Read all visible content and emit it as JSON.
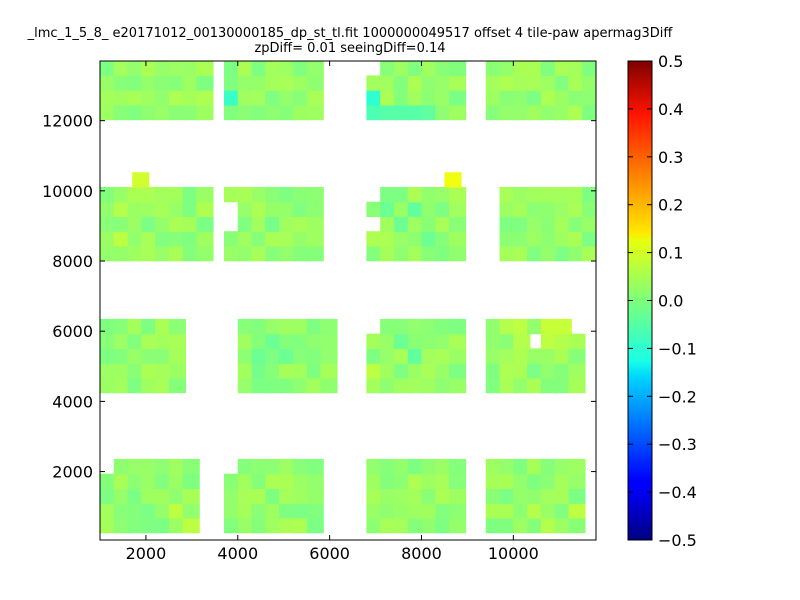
{
  "chart_data": {
    "type": "heatmap",
    "title_line1": "_lmc_1_5_8_ e20171012_00130000185_dp_st_tl.fit 1000000049517 offset 4 tile-paw apermag3Diff",
    "title_line2": "zpDiff= 0.01 seeingDiff=0.14",
    "xlabel": "",
    "ylabel": "",
    "xlim": [
      1000,
      11800
    ],
    "ylim": [
      50,
      13700
    ],
    "x_ticks": [
      2000,
      4000,
      6000,
      8000,
      10000
    ],
    "x_tick_labels": [
      "2000",
      "4000",
      "6000",
      "8000",
      "10000"
    ],
    "y_ticks": [
      2000,
      4000,
      6000,
      8000,
      10000,
      12000
    ],
    "y_tick_labels": [
      "2000",
      "4000",
      "6000",
      "8000",
      "10000",
      "12000"
    ],
    "colorbar": {
      "colormap": "jet",
      "vmin": -0.5,
      "vmax": 0.5,
      "ticks": [
        -0.5,
        -0.4,
        -0.3,
        -0.2,
        -0.1,
        0.0,
        0.1,
        0.2,
        0.3,
        0.4,
        0.5
      ],
      "tick_labels": [
        "−0.5",
        "−0.4",
        "−0.3",
        "−0.2",
        "−0.1",
        "0.0",
        "0.1",
        "0.2",
        "0.3",
        "0.4",
        "0.5"
      ]
    },
    "cell_width": 360,
    "cell_height": 420,
    "row_y": [
      260,
      680,
      1100,
      1520,
      1940,
      4250,
      4670,
      5090,
      5510,
      5930,
      8010,
      8430,
      8850,
      9270,
      9690,
      10110,
      12030,
      12450,
      12870,
      13290
    ],
    "default_value": 0.02,
    "detectors": [
      {
        "x0": 1000,
        "x1": 3000,
        "rows": [
          0,
          1,
          2,
          3,
          4
        ]
      },
      {
        "x0": 3700,
        "x1": 5700,
        "rows": [
          0,
          1,
          2,
          3,
          4
        ]
      },
      {
        "x0": 6800,
        "x1": 8700,
        "rows": [
          0,
          1,
          2,
          3,
          4
        ]
      },
      {
        "x0": 9400,
        "x1": 11400,
        "rows": [
          0,
          1,
          2,
          3,
          4
        ]
      },
      {
        "x0": 1000,
        "x1": 2700,
        "rows": [
          5,
          6,
          7,
          8,
          9
        ]
      },
      {
        "x0": 4000,
        "x1": 6000,
        "rows": [
          5,
          6,
          7,
          8,
          9
        ]
      },
      {
        "x0": 6800,
        "x1": 8700,
        "rows": [
          5,
          6,
          7,
          8,
          9
        ]
      },
      {
        "x0": 9400,
        "x1": 11400,
        "rows": [
          5,
          6,
          7,
          8,
          9
        ]
      },
      {
        "x0": 1000,
        "x1": 3300,
        "rows": [
          10,
          11,
          12,
          13,
          14
        ]
      },
      {
        "x0": 3700,
        "x1": 5700,
        "rows": [
          10,
          11,
          12,
          13,
          14
        ]
      },
      {
        "x0": 6800,
        "x1": 8700,
        "rows": [
          10,
          11,
          12,
          13,
          14
        ]
      },
      {
        "x0": 9700,
        "x1": 11800,
        "rows": [
          10,
          11,
          12,
          13,
          14
        ]
      },
      {
        "x0": 1000,
        "x1": 3300,
        "rows": [
          16,
          17,
          18,
          19
        ]
      },
      {
        "x0": 3700,
        "x1": 5700,
        "rows": [
          16,
          17,
          18,
          19
        ]
      },
      {
        "x0": 6800,
        "x1": 8700,
        "rows": [
          16,
          17,
          18,
          19
        ]
      },
      {
        "x0": 9400,
        "x1": 11800,
        "rows": [
          16,
          17,
          18,
          19
        ]
      }
    ],
    "extra_cells": [
      {
        "x": 1700,
        "y": 10110,
        "v": 0.08
      },
      {
        "x": 8500,
        "y": 10110,
        "v": 0.11
      }
    ],
    "missing_cells": [
      {
        "x": 1000,
        "y": 1940
      },
      {
        "x": 3700,
        "y": 1940
      },
      {
        "x": 7500,
        "y": 1940
      },
      {
        "x": 8400,
        "y": 1940
      },
      {
        "x": 3400,
        "y": 5510
      },
      {
        "x": 3700,
        "y": 5510
      },
      {
        "x": 5100,
        "y": 4670
      },
      {
        "x": 6800,
        "y": 5930
      },
      {
        "x": 8400,
        "y": 5510
      },
      {
        "x": 10300,
        "y": 5510
      },
      {
        "x": 11200,
        "y": 5930
      },
      {
        "x": 6800,
        "y": 8850
      },
      {
        "x": 3700,
        "y": 8850
      },
      {
        "x": 3700,
        "y": 9270
      },
      {
        "x": 6800,
        "y": 9690
      },
      {
        "x": 8400,
        "y": 12030
      },
      {
        "x": 3000,
        "y": 12030
      },
      {
        "x": 6800,
        "y": 13290
      },
      {
        "x": 5700,
        "y": 12030
      },
      {
        "x": 3400,
        "y": 12450
      }
    ],
    "cell_values": [
      {
        "x": 3000,
        "y": 680,
        "v": -0.07
      },
      {
        "x": 3000,
        "y": 9270,
        "v": -0.06
      },
      {
        "x": 3000,
        "y": 8850,
        "v": -0.04
      },
      {
        "x": 3000,
        "y": 8430,
        "v": -0.08
      },
      {
        "x": 5700,
        "y": 4250,
        "v": -0.09
      },
      {
        "x": 5400,
        "y": 4250,
        "v": -0.05
      },
      {
        "x": 5100,
        "y": 4250,
        "v": -0.05
      },
      {
        "x": 3700,
        "y": 12450,
        "v": -0.07
      },
      {
        "x": 6800,
        "y": 12450,
        "v": -0.08
      },
      {
        "x": 6800,
        "y": 12030,
        "v": -0.05
      },
      {
        "x": 8700,
        "y": 12870,
        "v": 0.1
      },
      {
        "x": 6800,
        "y": 4670,
        "v": 0.06
      },
      {
        "x": 7100,
        "y": 12030,
        "v": -0.04
      },
      {
        "x": 7400,
        "y": 12030,
        "v": -0.04
      },
      {
        "x": 7700,
        "y": 12030,
        "v": -0.04
      },
      {
        "x": 8000,
        "y": 12030,
        "v": -0.03
      },
      {
        "x": 8700,
        "y": 12450,
        "v": 0.07
      },
      {
        "x": 8700,
        "y": 13290,
        "v": 0.06
      },
      {
        "x": 9700,
        "y": 5930,
        "v": 0.05
      },
      {
        "x": 10000,
        "y": 5930,
        "v": 0.06
      },
      {
        "x": 10000,
        "y": 5510,
        "v": 0.05
      },
      {
        "x": 10600,
        "y": 5510,
        "v": 0.06
      },
      {
        "x": 10600,
        "y": 5930,
        "v": 0.07
      },
      {
        "x": 10900,
        "y": 5930,
        "v": 0.07
      },
      {
        "x": 10900,
        "y": 5510,
        "v": 0.05
      },
      {
        "x": 1300,
        "y": 9270,
        "v": 0.05
      },
      {
        "x": 1300,
        "y": 8430,
        "v": 0.06
      },
      {
        "x": 2500,
        "y": 680,
        "v": 0.06
      },
      {
        "x": 2800,
        "y": 260,
        "v": 0.06
      },
      {
        "x": 10300,
        "y": 680,
        "v": 0.05
      },
      {
        "x": 10600,
        "y": 260,
        "v": 0.05
      },
      {
        "x": 11200,
        "y": 680,
        "v": 0.06
      },
      {
        "x": 4300,
        "y": 4670,
        "v": -0.01
      },
      {
        "x": 4300,
        "y": 5090,
        "v": -0.02
      },
      {
        "x": 4600,
        "y": 5510,
        "v": -0.02
      },
      {
        "x": 4900,
        "y": 5090,
        "v": -0.02
      },
      {
        "x": 7400,
        "y": 5510,
        "v": -0.02
      },
      {
        "x": 7700,
        "y": 5090,
        "v": -0.03
      },
      {
        "x": 8100,
        "y": 5930,
        "v": 0.04
      },
      {
        "x": 8400,
        "y": 5090,
        "v": 0.03
      },
      {
        "x": 7100,
        "y": 9270,
        "v": -0.02
      },
      {
        "x": 7400,
        "y": 8850,
        "v": -0.02
      },
      {
        "x": 7700,
        "y": 9270,
        "v": -0.03
      },
      {
        "x": 8000,
        "y": 8430,
        "v": -0.02
      },
      {
        "x": 8400,
        "y": 9690,
        "v": 0.04
      },
      {
        "x": 4000,
        "y": 9690,
        "v": 0.04
      },
      {
        "x": 4600,
        "y": 8850,
        "v": -0.01
      },
      {
        "x": 5200,
        "y": 9270,
        "v": 0.0
      },
      {
        "x": 10300,
        "y": 8010,
        "v": 0.0
      },
      {
        "x": 10600,
        "y": 8850,
        "v": 0.01
      },
      {
        "x": 11200,
        "y": 9270,
        "v": 0.04
      },
      {
        "x": 9700,
        "y": 9690,
        "v": 0.04
      },
      {
        "x": 1000,
        "y": 12030,
        "v": 0.03
      },
      {
        "x": 1600,
        "y": 12450,
        "v": 0.04
      },
      {
        "x": 2200,
        "y": 12870,
        "v": 0.01
      },
      {
        "x": 4600,
        "y": 12450,
        "v": 0.0
      },
      {
        "x": 5200,
        "y": 12870,
        "v": 0.03
      },
      {
        "x": 9700,
        "y": 12030,
        "v": 0.02
      },
      {
        "x": 10300,
        "y": 12870,
        "v": 0.04
      },
      {
        "x": 11200,
        "y": 12450,
        "v": 0.01
      },
      {
        "x": 7100,
        "y": 260,
        "v": 0.04
      },
      {
        "x": 7700,
        "y": 680,
        "v": 0.03
      },
      {
        "x": 8000,
        "y": 1100,
        "v": 0.01
      },
      {
        "x": 4000,
        "y": 1100,
        "v": 0.04
      },
      {
        "x": 4600,
        "y": 680,
        "v": 0.03
      },
      {
        "x": 1300,
        "y": 4670,
        "v": 0.03
      },
      {
        "x": 1900,
        "y": 5090,
        "v": 0.01
      },
      {
        "x": 2200,
        "y": 4250,
        "v": 0.04
      }
    ]
  }
}
